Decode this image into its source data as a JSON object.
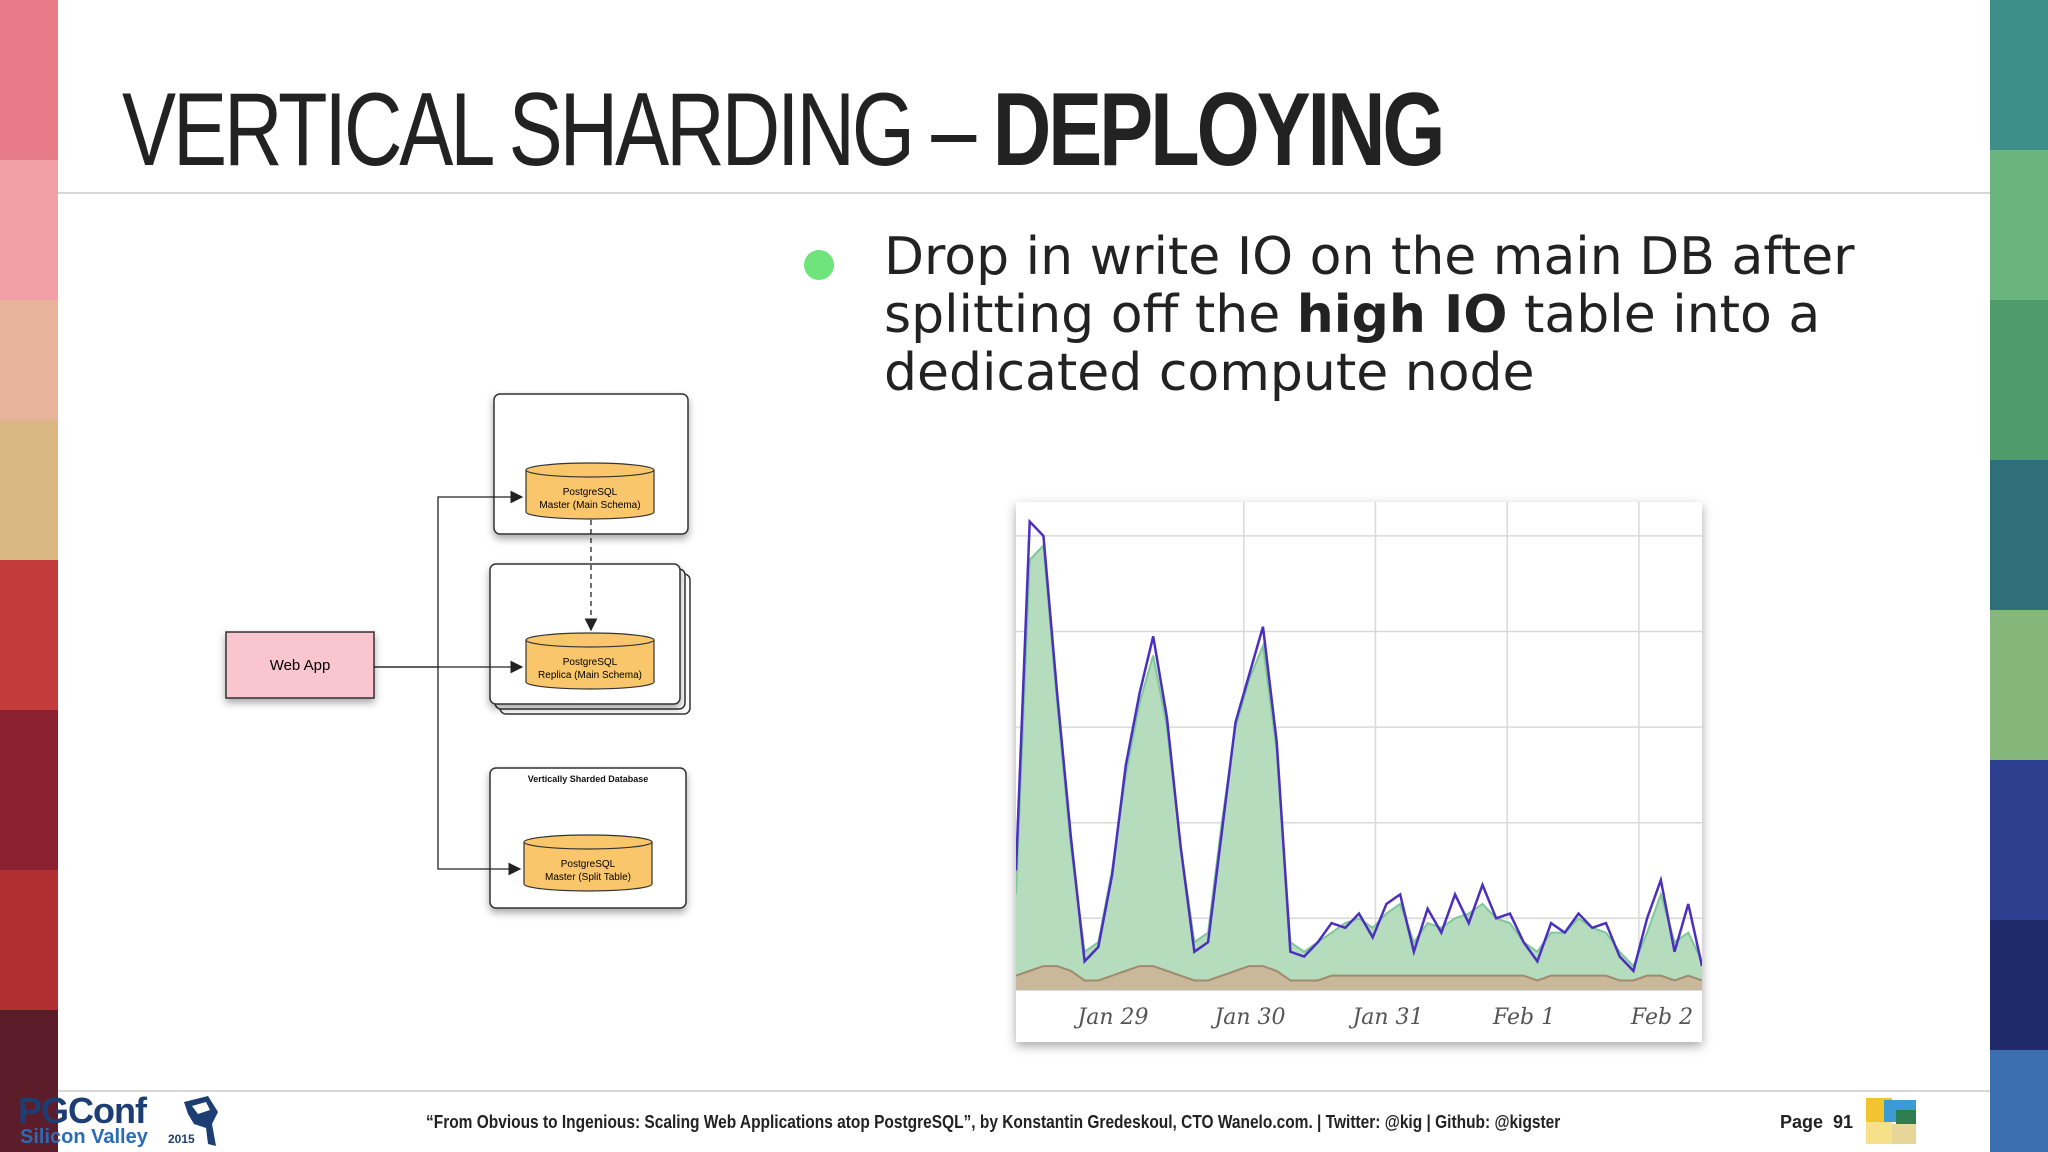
{
  "slide": {
    "title_light": "VERTICAL SHARDING – ",
    "title_bold": "DEPLOYING",
    "bullet": {
      "part1": "Drop in write IO on the main DB after splitting off the ",
      "bold": "high IO",
      "part2": " table into a dedicated compute node",
      "dot_color": "#6fe37c"
    }
  },
  "diagram": {
    "web_app": "Web App",
    "master_line1": "PostgreSQL",
    "master_line2": "Master (Main Schema)",
    "replica_line1": "PostgreSQL",
    "replica_line2": "Replica (Main Schema)",
    "sharded_title": "Vertically Sharded Database",
    "split_line1": "PostgreSQL",
    "split_line2": "Master (Split Table)",
    "db_color": "#f9c66b",
    "webapp_color": "#f9c6cf"
  },
  "chart_data": {
    "type": "area",
    "x": [
      0,
      0.1,
      0.2,
      0.3,
      0.4,
      0.5,
      0.6,
      0.7,
      0.8,
      0.9,
      1.0,
      1.1,
      1.2,
      1.3,
      1.4,
      1.5,
      1.6,
      1.7,
      1.8,
      1.9,
      2.0,
      2.1,
      2.2,
      2.3,
      2.4,
      2.5,
      2.6,
      2.7,
      2.8,
      2.9,
      3.0,
      3.1,
      3.2,
      3.3,
      3.4,
      3.5,
      3.6,
      3.7,
      3.8,
      3.9,
      4.0,
      4.1,
      4.2,
      4.3,
      4.4,
      4.5,
      4.6,
      4.7,
      4.8,
      4.9,
      5.0
    ],
    "series": [
      {
        "values": [
          0.2,
          0.9,
          0.93,
          0.6,
          0.3,
          0.08,
          0.1,
          0.25,
          0.45,
          0.6,
          0.7,
          0.55,
          0.3,
          0.1,
          0.12,
          0.35,
          0.55,
          0.65,
          0.72,
          0.5,
          0.1,
          0.08,
          0.1,
          0.12,
          0.14,
          0.15,
          0.13,
          0.16,
          0.18,
          0.1,
          0.14,
          0.13,
          0.15,
          0.16,
          0.18,
          0.15,
          0.14,
          0.1,
          0.08,
          0.12,
          0.12,
          0.15,
          0.13,
          0.12,
          0.08,
          0.05,
          0.12,
          0.2,
          0.1,
          0.12,
          0.06
        ],
        "color": "#7fc79a"
      },
      {
        "values": [
          0.25,
          0.98,
          0.95,
          0.62,
          0.32,
          0.06,
          0.09,
          0.24,
          0.47,
          0.62,
          0.74,
          0.57,
          0.3,
          0.08,
          0.1,
          0.33,
          0.56,
          0.66,
          0.76,
          0.52,
          0.08,
          0.07,
          0.1,
          0.14,
          0.13,
          0.16,
          0.11,
          0.18,
          0.2,
          0.08,
          0.17,
          0.12,
          0.2,
          0.14,
          0.22,
          0.15,
          0.16,
          0.1,
          0.06,
          0.14,
          0.12,
          0.16,
          0.13,
          0.14,
          0.07,
          0.04,
          0.15,
          0.23,
          0.08,
          0.18,
          0.05
        ],
        "color": "#4b2fbf"
      },
      {
        "values": [
          0.03,
          0.04,
          0.05,
          0.05,
          0.04,
          0.02,
          0.02,
          0.03,
          0.04,
          0.05,
          0.05,
          0.04,
          0.03,
          0.02,
          0.02,
          0.03,
          0.04,
          0.05,
          0.05,
          0.04,
          0.02,
          0.02,
          0.02,
          0.03,
          0.03,
          0.03,
          0.03,
          0.03,
          0.03,
          0.03,
          0.03,
          0.03,
          0.03,
          0.03,
          0.03,
          0.03,
          0.03,
          0.03,
          0.02,
          0.03,
          0.03,
          0.03,
          0.03,
          0.03,
          0.02,
          0.02,
          0.03,
          0.03,
          0.02,
          0.03,
          0.02
        ],
        "color": "#a08a70"
      }
    ],
    "xlabels": [
      "Jan 29",
      "Jan 30",
      "Jan 31",
      "Feb 1",
      "Feb 2"
    ],
    "ylim": [
      0,
      1
    ],
    "grid": true
  },
  "footer": {
    "logo_main": "PGConf",
    "logo_sub": "Silicon Valley",
    "logo_year": "2015",
    "citation": "“From Obvious to Ingenious: Scaling Web Applications atop PostgreSQL”, by Konstantin Gredeskoul, CTO Wanelo.com. | Twitter: @kig | Github: @kigster",
    "page_label": "Page",
    "page_number": "91"
  }
}
